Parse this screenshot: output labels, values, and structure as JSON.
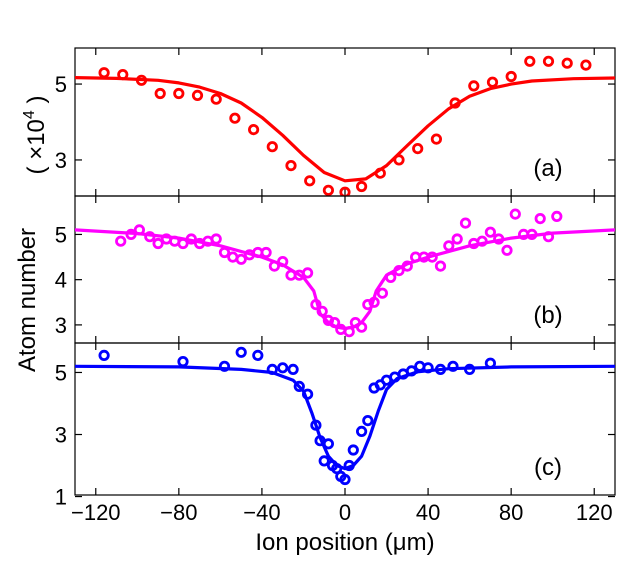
{
  "figure": {
    "xlabel": "Ion position (μm)",
    "ylabel": "Atom number",
    "ylabel_unit_prefix": "( ×10",
    "ylabel_unit_exp": "4",
    "ylabel_unit_suffix": " )"
  },
  "chart_data": [
    {
      "type": "scatter",
      "panel_label": "(a)",
      "color": "#ff0000",
      "xlim": [
        -130,
        130
      ],
      "ylim": [
        2.05,
        5.95
      ],
      "yticks": [
        3,
        5
      ],
      "ytick_labels": [
        "3",
        "5"
      ],
      "points": {
        "x": [
          -116,
          -107,
          -98,
          -89,
          -80,
          -71,
          -62,
          -53,
          -44,
          -35,
          -26,
          -17,
          -8,
          0,
          8,
          17,
          26,
          35,
          44,
          53,
          62,
          71,
          80,
          89,
          98,
          107,
          116
        ],
        "y": [
          5.3,
          5.25,
          5.1,
          4.75,
          4.75,
          4.7,
          4.6,
          4.1,
          3.8,
          3.35,
          2.85,
          2.45,
          2.2,
          2.15,
          2.3,
          2.65,
          3.0,
          3.3,
          3.55,
          4.5,
          4.95,
          5.05,
          5.2,
          5.6,
          5.6,
          5.55,
          5.5
        ]
      },
      "fit": {
        "x": [
          -130,
          -110,
          -90,
          -80,
          -70,
          -60,
          -50,
          -40,
          -30,
          -20,
          -10,
          0,
          10,
          20,
          30,
          40,
          50,
          60,
          70,
          80,
          90,
          110,
          130
        ],
        "y": [
          5.17,
          5.15,
          5.1,
          5.03,
          4.92,
          4.75,
          4.5,
          4.12,
          3.65,
          3.12,
          2.67,
          2.45,
          2.5,
          2.85,
          3.38,
          3.9,
          4.35,
          4.68,
          4.88,
          5.0,
          5.08,
          5.14,
          5.16
        ]
      }
    },
    {
      "type": "scatter",
      "panel_label": "(b)",
      "color": "#ff00ff",
      "xlim": [
        -130,
        130
      ],
      "ylim": [
        2.6,
        5.85
      ],
      "yticks": [
        3,
        4,
        5
      ],
      "ytick_labels": [
        "3",
        "4",
        "5"
      ],
      "points": {
        "x": [
          -108,
          -103,
          -99,
          -94,
          -90,
          -86,
          -82,
          -78,
          -74,
          -70,
          -66,
          -62,
          -58,
          -54,
          -50,
          -46,
          -42,
          -38,
          -34,
          -30,
          -26,
          -22,
          -18,
          -14,
          -11,
          -8,
          -5,
          -2,
          2,
          5,
          8,
          11,
          14,
          18,
          22,
          26,
          30,
          34,
          38,
          42,
          46,
          50,
          54,
          58,
          62,
          66,
          70,
          74,
          78,
          82,
          86,
          90,
          94,
          98,
          102
        ],
        "y": [
          4.85,
          5.0,
          5.1,
          4.95,
          4.8,
          4.9,
          4.85,
          4.8,
          4.9,
          4.8,
          4.85,
          4.9,
          4.6,
          4.5,
          4.45,
          4.55,
          4.6,
          4.6,
          4.3,
          4.4,
          4.1,
          4.1,
          4.15,
          3.45,
          3.3,
          3.1,
          3.05,
          2.9,
          2.85,
          3.05,
          2.95,
          3.45,
          3.5,
          3.7,
          4.05,
          4.2,
          4.3,
          4.5,
          4.5,
          4.5,
          4.3,
          4.75,
          4.9,
          5.25,
          4.8,
          4.85,
          5.05,
          4.9,
          4.65,
          5.45,
          5.0,
          5.0,
          5.35,
          4.95,
          5.4
        ]
      },
      "fit": {
        "x": [
          -130,
          -100,
          -80,
          -60,
          -40,
          -30,
          -20,
          -15,
          -12,
          -8,
          -4,
          0,
          4,
          8,
          12,
          15,
          20,
          30,
          40,
          60,
          80,
          100,
          130
        ],
        "y": [
          5.1,
          5.02,
          4.92,
          4.75,
          4.5,
          4.33,
          4.05,
          3.75,
          3.25,
          3.05,
          2.95,
          2.92,
          2.95,
          3.05,
          3.3,
          3.75,
          4.1,
          4.35,
          4.5,
          4.75,
          4.92,
          5.03,
          5.1
        ]
      }
    },
    {
      "type": "scatter",
      "panel_label": "(c)",
      "color": "#0000ff",
      "xlim": [
        -130,
        130
      ],
      "ylim": [
        1.05,
        5.95
      ],
      "yticks": [
        1,
        3,
        5
      ],
      "ytick_labels": [
        "1",
        "3",
        "5"
      ],
      "points": {
        "x": [
          -116,
          -78,
          -58,
          -50,
          -42,
          -35,
          -30,
          -25,
          -22,
          -18,
          -14,
          -12,
          -10,
          -8,
          -6,
          -4,
          -2,
          0,
          2,
          4,
          8,
          11,
          14,
          17,
          20,
          24,
          28,
          32,
          36,
          40,
          46,
          52,
          60,
          70
        ],
        "y": [
          5.55,
          5.35,
          5.2,
          5.65,
          5.55,
          5.1,
          5.15,
          5.1,
          4.55,
          4.3,
          3.3,
          2.8,
          2.15,
          2.7,
          2.0,
          1.9,
          1.65,
          1.55,
          2.0,
          2.5,
          3.1,
          3.45,
          4.5,
          4.6,
          4.75,
          4.85,
          4.95,
          5.05,
          5.2,
          5.15,
          5.1,
          5.2,
          5.1,
          5.3
        ]
      },
      "fit": {
        "x": [
          -130,
          -80,
          -50,
          -35,
          -25,
          -20,
          -16,
          -12,
          -8,
          -4,
          0,
          4,
          8,
          12,
          16,
          20,
          25,
          35,
          50,
          80,
          130
        ],
        "y": [
          5.2,
          5.18,
          5.1,
          5.0,
          4.75,
          4.4,
          3.7,
          2.9,
          2.3,
          2.0,
          1.9,
          2.0,
          2.3,
          2.95,
          3.75,
          4.45,
          4.8,
          5.02,
          5.12,
          5.18,
          5.2
        ]
      }
    }
  ],
  "x_axis": {
    "ticks": [
      -120,
      -80,
      -40,
      0,
      40,
      80,
      120
    ],
    "tick_labels": [
      "−120",
      "−80",
      "−40",
      "0",
      "40",
      "80",
      "120"
    ]
  }
}
